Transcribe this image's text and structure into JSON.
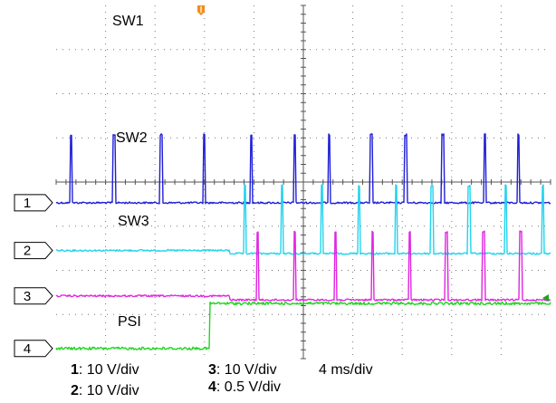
{
  "chart_data": {
    "type": "line",
    "title": "",
    "xlabel": "",
    "ylabel": "",
    "grid": true,
    "divisions": {
      "x": 10,
      "y": 8
    },
    "channels": [
      {
        "id": "1",
        "marker": "1",
        "label": "SW1",
        "color": "#1f1fd6",
        "scale_value": "10 V/div",
        "low_level_div": -0.47,
        "pulse_amplitude_div": 1.54,
        "pulse_times_ms": [
          1.1,
          4.6,
          8.4,
          11.9,
          15.7,
          19.2,
          22.0,
          25.4,
          28.2,
          31.2,
          34.6,
          37.3,
          40.2
        ]
      },
      {
        "id": "2",
        "marker": "2",
        "label": "SW2",
        "color": "#22d3ee",
        "scale_value": "10 V/div",
        "low_level_before_div": -1.55,
        "low_level_after_div": -1.62,
        "step_time_ms": 14.0,
        "pulse_amplitude_div": 1.54,
        "pulse_times_ms": [
          15.2,
          18.2,
          21.4,
          24.4,
          27.4,
          30.3,
          33.3,
          36.3,
          39.3
        ]
      },
      {
        "id": "3",
        "marker": "3",
        "label": "SW3",
        "color": "#e026e0",
        "scale_value": "10 V/div",
        "low_level_before_div": -2.58,
        "low_level_after_div": -2.67,
        "step_time_ms": 14.0,
        "pulse_amplitude_div": 1.54,
        "pulse_times_ms": [
          16.2,
          19.2,
          22.5,
          25.5,
          28.5,
          31.5,
          34.5,
          37.5,
          40.5
        ]
      },
      {
        "id": "4",
        "marker": "4",
        "label": "PSI",
        "color": "#22d422",
        "scale_value": "0.5 V/div",
        "low_level_div": -3.77,
        "high_level_div": -2.75,
        "step_time_ms": 12.4
      }
    ],
    "timebase": "4 ms/div",
    "trigger_marker": "orange-trigger-icon",
    "level_marker": "green-level-arrow-icon"
  }
}
